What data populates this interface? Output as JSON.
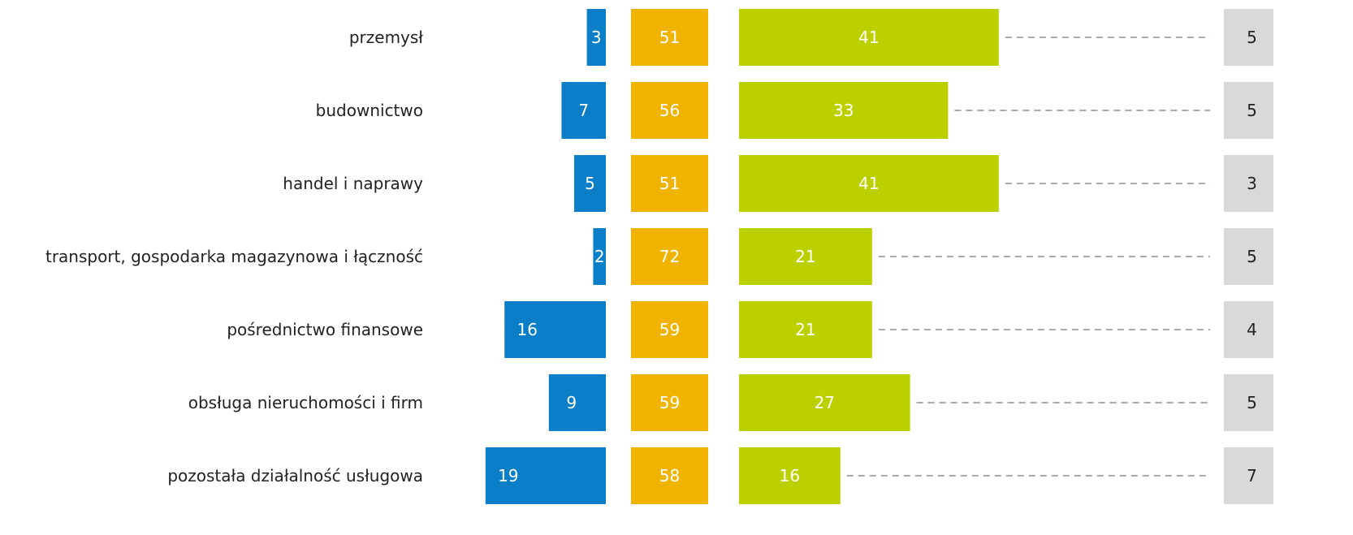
{
  "chart_data": {
    "type": "bar",
    "categories": [
      "przemysł",
      "budownictwo",
      "handel i naprawy",
      "transport, gospodarka magazynowa i łączność",
      "pośrednictwo finansowe",
      "obsługa nieruchomości i firm",
      "pozostała działalność usługowa"
    ],
    "series": [
      {
        "color": "#0a7fc7",
        "values": [
          3,
          7,
          5,
          2,
          16,
          9,
          19
        ]
      },
      {
        "color": "#f0b400",
        "values": [
          51,
          56,
          51,
          72,
          59,
          59,
          58
        ]
      },
      {
        "color": "#bcd000",
        "values": [
          41,
          33,
          41,
          21,
          21,
          27,
          16
        ]
      },
      {
        "color": "#d9d9d9",
        "values": [
          5,
          5,
          3,
          5,
          4,
          5,
          7
        ]
      }
    ]
  }
}
